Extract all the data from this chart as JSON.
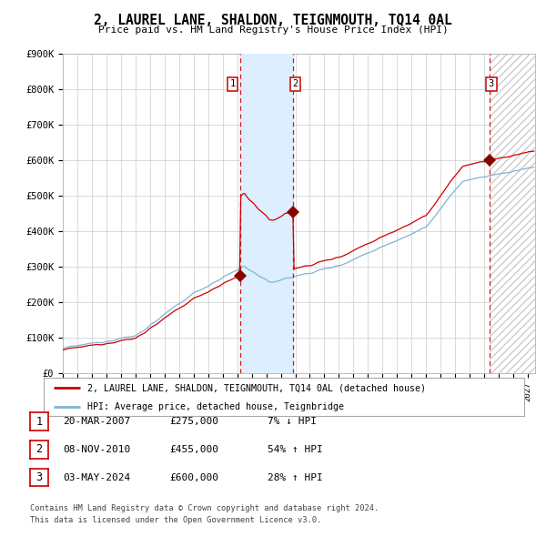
{
  "title": "2, LAUREL LANE, SHALDON, TEIGNMOUTH, TQ14 0AL",
  "subtitle": "Price paid vs. HM Land Registry's House Price Index (HPI)",
  "ylim": [
    0,
    900000
  ],
  "xlim_start": 1995.0,
  "xlim_end": 2027.5,
  "yticks": [
    0,
    100000,
    200000,
    300000,
    400000,
    500000,
    600000,
    700000,
    800000,
    900000
  ],
  "ytick_labels": [
    "£0",
    "£100K",
    "£200K",
    "£300K",
    "£400K",
    "£500K",
    "£600K",
    "£700K",
    "£800K",
    "£900K"
  ],
  "sale_dates": [
    2007.22,
    2010.85,
    2024.34
  ],
  "sale_prices": [
    275000,
    455000,
    600000
  ],
  "sale_labels": [
    "1",
    "2",
    "3"
  ],
  "shaded_region": [
    2007.22,
    2010.85
  ],
  "hatch_start": 2024.34,
  "line_color_red": "#cc0000",
  "line_color_blue": "#7fb3d3",
  "dot_color": "#880000",
  "shade_color": "#ddeeff",
  "grid_color": "#cccccc",
  "background_color": "#ffffff",
  "legend_line1": "2, LAUREL LANE, SHALDON, TEIGNMOUTH, TQ14 0AL (detached house)",
  "legend_line2": "HPI: Average price, detached house, Teignbridge",
  "table_rows": [
    [
      "1",
      "20-MAR-2007",
      "£275,000",
      "7% ↓ HPI"
    ],
    [
      "2",
      "08-NOV-2010",
      "£455,000",
      "54% ↑ HPI"
    ],
    [
      "3",
      "03-MAY-2024",
      "£600,000",
      "28% ↑ HPI"
    ]
  ],
  "footer_text": "Contains HM Land Registry data © Crown copyright and database right 2024.\nThis data is licensed under the Open Government Licence v3.0."
}
